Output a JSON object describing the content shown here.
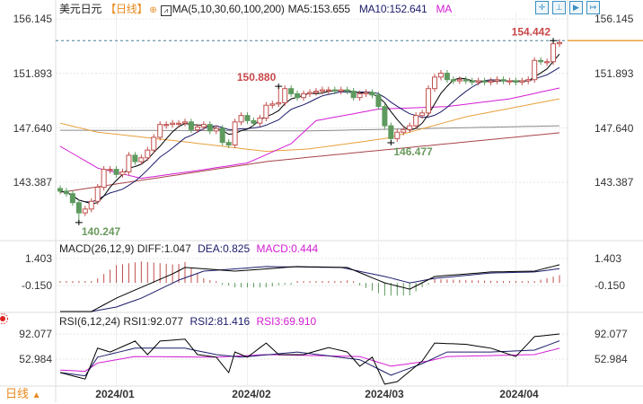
{
  "header": {
    "symbol": "美元日元",
    "period": "【日线】",
    "ma_params": "MA(5,10,30,60,100,200)",
    "ma5": "MA5:153.655",
    "ma10": "MA10:152.641",
    "ma_more": "MA",
    "icons": [
      "crosshair-icon",
      "zoom-range-icon",
      "play-icon",
      "exit-icon"
    ]
  },
  "macd_header": {
    "params": "MACD(26,12,9)",
    "diff": "DIFF:1.047",
    "dea": "DEA:0.825",
    "macd": "MACD:0.444"
  },
  "rsi_header": {
    "params": "RSI(6,12,24)",
    "rsi1": "RSI1:92.077",
    "rsi2": "RSI2:81.416",
    "rsi3": "RSI3:69.910"
  },
  "footer": {
    "period_label": "日线",
    "arrow": "▲"
  },
  "colors": {
    "up": "#c0504d",
    "down": "#5e9a5e",
    "ma5": "#000000",
    "ma10": "#1c1c6b",
    "ma30": "#d41cd4",
    "ma60": "#e8a03c",
    "ma100": "#8a8a8a",
    "ma200": "#a8434a",
    "price_line": "#e8a03c"
  },
  "chart_data": [
    {
      "type": "candlestick",
      "title": "美元日元",
      "yticks": [
        "156.145",
        "151.893",
        "147.640",
        "143.387"
      ],
      "ytick_values": [
        156.145,
        151.893,
        147.64,
        143.387
      ],
      "xticks": [
        "2024/01",
        "2024/02",
        "2024/03",
        "2024/04"
      ],
      "xtick_index": [
        9,
        30,
        51,
        73
      ],
      "closes": [
        142.7,
        142.5,
        141.8,
        141.0,
        141.3,
        141.9,
        143.0,
        144.4,
        144.4,
        144.0,
        144.2,
        145.5,
        145.0,
        145.3,
        145.9,
        146.9,
        147.9,
        147.9,
        148.0,
        148.0,
        148.1,
        147.5,
        147.7,
        147.9,
        147.4,
        147.6,
        146.5,
        146.3,
        148.1,
        148.6,
        148.2,
        148.0,
        148.4,
        149.4,
        149.5,
        149.6,
        150.7,
        150.3,
        150.0,
        150.3,
        150.4,
        150.5,
        150.6,
        150.6,
        150.5,
        150.6,
        150.5,
        150.0,
        150.3,
        150.4,
        150.2,
        149.3,
        147.8,
        146.8,
        147.3,
        147.5,
        147.8,
        148.6,
        148.8,
        150.7,
        151.6,
        151.9,
        151.4,
        151.3,
        151.4,
        151.3,
        151.2,
        151.3,
        151.2,
        151.3,
        151.4,
        151.3,
        151.3,
        151.2,
        151.3,
        151.4,
        152.9,
        152.8,
        152.8,
        154.2,
        154.3
      ],
      "annotations": [
        {
          "index": 3,
          "kind": "low",
          "value": "140.247"
        },
        {
          "index": 35,
          "kind": "high",
          "value": "150.880"
        },
        {
          "index": 53,
          "kind": "low",
          "value": "146.477"
        },
        {
          "index": 79,
          "kind": "high",
          "value": "154.442"
        }
      ],
      "current_price": 154.442,
      "ma_anchors": {
        "ma30": [
          [
            0,
            146.2
          ],
          [
            6,
            144.5
          ],
          [
            13,
            143.7
          ],
          [
            22,
            144.3
          ],
          [
            30,
            144.9
          ],
          [
            37,
            146.4
          ],
          [
            41,
            148.2
          ],
          [
            51,
            149.1
          ],
          [
            62,
            149.3
          ],
          [
            72,
            149.9
          ],
          [
            80,
            150.75
          ]
        ],
        "ma60": [
          [
            0,
            148.0
          ],
          [
            6,
            147.3
          ],
          [
            19,
            146.6
          ],
          [
            33,
            145.8
          ],
          [
            40,
            146.0
          ],
          [
            52,
            146.8
          ],
          [
            56,
            147.3
          ],
          [
            65,
            148.5
          ],
          [
            80,
            149.9
          ]
        ],
        "ma100": [
          [
            0,
            147.45
          ],
          [
            40,
            147.4
          ],
          [
            80,
            147.8
          ]
        ],
        "ma200": [
          [
            0,
            142.6
          ],
          [
            33,
            145.0
          ],
          [
            40,
            145.35
          ],
          [
            80,
            147.25
          ]
        ]
      },
      "grid": true
    },
    {
      "type": "line",
      "title": "MACD(26,12,9)",
      "yticks": [
        "1.403",
        "-0.150"
      ],
      "ytick_values": [
        1.403,
        -0.15
      ],
      "series": [
        {
          "name": "DIFF",
          "anchors": [
            [
              0,
              -1.65
            ],
            [
              5,
              -1.65
            ],
            [
              9,
              -0.88
            ],
            [
              13,
              -0.26
            ],
            [
              18,
              0.52
            ],
            [
              20,
              0.89
            ],
            [
              28,
              0.68
            ],
            [
              38,
              0.94
            ],
            [
              46,
              0.89
            ],
            [
              52,
              0.0
            ],
            [
              56,
              -0.36
            ],
            [
              60,
              0.37
            ],
            [
              69,
              0.63
            ],
            [
              76,
              0.68
            ],
            [
              80,
              1.047
            ]
          ]
        },
        {
          "name": "DEA",
          "anchors": [
            [
              0,
              -1.65
            ],
            [
              5,
              -1.65
            ],
            [
              9,
              -1.39
            ],
            [
              13,
              -0.88
            ],
            [
              19,
              0.16
            ],
            [
              23,
              0.68
            ],
            [
              33,
              0.94
            ],
            [
              45,
              0.89
            ],
            [
              52,
              0.37
            ],
            [
              56,
              0.0
            ],
            [
              60,
              0.26
            ],
            [
              69,
              0.57
            ],
            [
              76,
              0.63
            ],
            [
              80,
              0.825
            ]
          ]
        }
      ],
      "histogram": "MACD = 2*(DIFF-DEA)"
    },
    {
      "type": "line",
      "title": "RSI(6,12,24)",
      "yticks": [
        "92.077",
        "52.984"
      ],
      "ytick_values": [
        92.077,
        52.984
      ],
      "series": [
        {
          "name": "RSI1",
          "anchors": [
            [
              0,
              32
            ],
            [
              4,
              22
            ],
            [
              6,
              70
            ],
            [
              8,
              64
            ],
            [
              12,
              81
            ],
            [
              14,
              60
            ],
            [
              16,
              81
            ],
            [
              20,
              84
            ],
            [
              22,
              60
            ],
            [
              25,
              56
            ],
            [
              27,
              32
            ],
            [
              28,
              64
            ],
            [
              30,
              56
            ],
            [
              33,
              78
            ],
            [
              35,
              60
            ],
            [
              39,
              60
            ],
            [
              43,
              71
            ],
            [
              46,
              64
            ],
            [
              48,
              42
            ],
            [
              50,
              56
            ],
            [
              52,
              14
            ],
            [
              54,
              18
            ],
            [
              58,
              50
            ],
            [
              60,
              78
            ],
            [
              65,
              76
            ],
            [
              69,
              70
            ],
            [
              73,
              57
            ],
            [
              76,
              88
            ],
            [
              80,
              92.077
            ]
          ]
        },
        {
          "name": "RSI2",
          "anchors": [
            [
              0,
              32
            ],
            [
              4,
              27
            ],
            [
              6,
              56
            ],
            [
              12,
              70
            ],
            [
              20,
              70
            ],
            [
              25,
              60
            ],
            [
              29,
              56
            ],
            [
              38,
              64
            ],
            [
              48,
              52
            ],
            [
              53,
              28
            ],
            [
              58,
              46
            ],
            [
              62,
              64
            ],
            [
              69,
              64
            ],
            [
              76,
              67
            ],
            [
              80,
              81.416
            ]
          ]
        },
        {
          "name": "RSI3",
          "anchors": [
            [
              0,
              36
            ],
            [
              4,
              34
            ],
            [
              6,
              47
            ],
            [
              12,
              57
            ],
            [
              25,
              56
            ],
            [
              33,
              60
            ],
            [
              48,
              57
            ],
            [
              53,
              42
            ],
            [
              59,
              50
            ],
            [
              62,
              57
            ],
            [
              76,
              60
            ],
            [
              80,
              69.91
            ]
          ]
        }
      ]
    }
  ]
}
